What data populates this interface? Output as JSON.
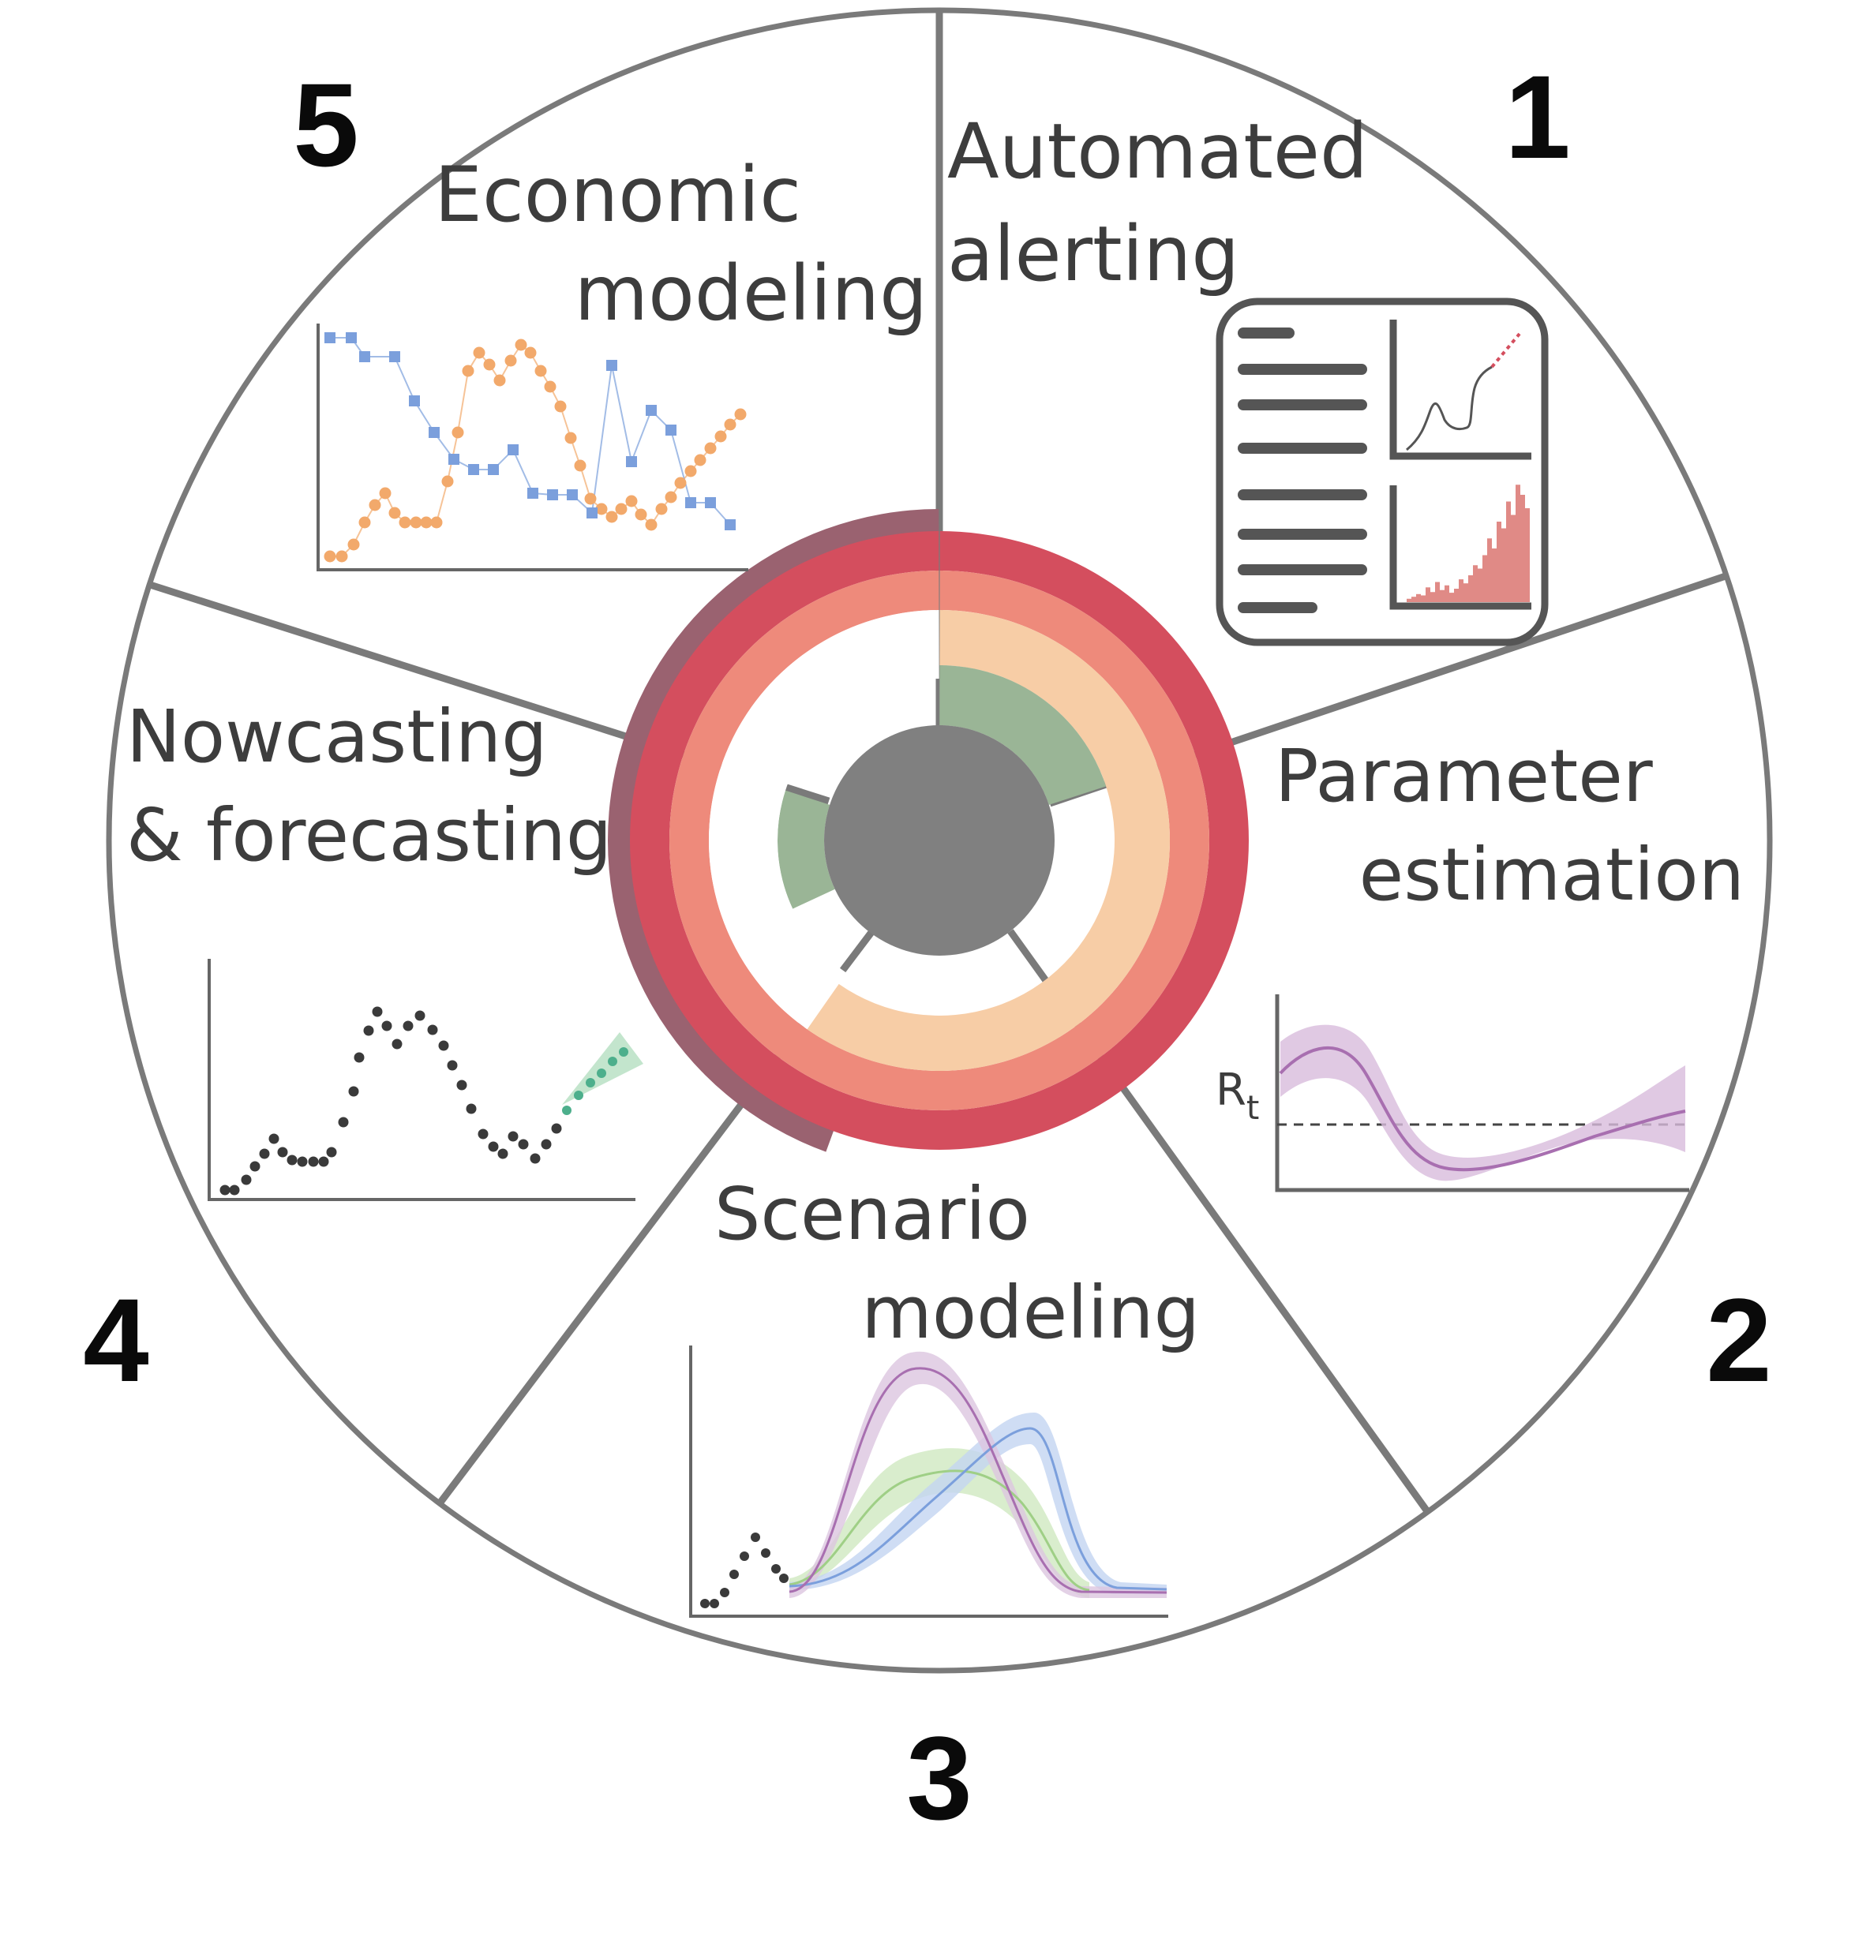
{
  "diagram": {
    "segments": [
      {
        "number": "1",
        "label_lines": [
          "Automated",
          "alerting"
        ]
      },
      {
        "number": "2",
        "label_lines": [
          "Parameter",
          "estimation"
        ],
        "axis_label": "R",
        "axis_label_sub": "t"
      },
      {
        "number": "3",
        "label_lines": [
          "Scenario",
          "modeling"
        ]
      },
      {
        "number": "4",
        "label_lines": [
          "Nowcasting",
          "& forecasting"
        ]
      },
      {
        "number": "5",
        "label_lines": [
          "Economic",
          "modeling"
        ]
      }
    ],
    "colors": {
      "outline": "#7a7a7a",
      "hub": "#808080",
      "ring_outer_purple": "#9a6270",
      "ring_red": "#d44e5e",
      "ring_salmon": "#ee8a7b",
      "ring_peach": "#f7cda6",
      "ring_green": "#9ab596",
      "series_orange": "#f2a96b",
      "series_blue": "#7b9fdc",
      "series_purple": "#a86fb0",
      "series_green": "#9fcf86",
      "bars_red": "#e08a86",
      "forecast_green": "#4daf8c"
    }
  }
}
